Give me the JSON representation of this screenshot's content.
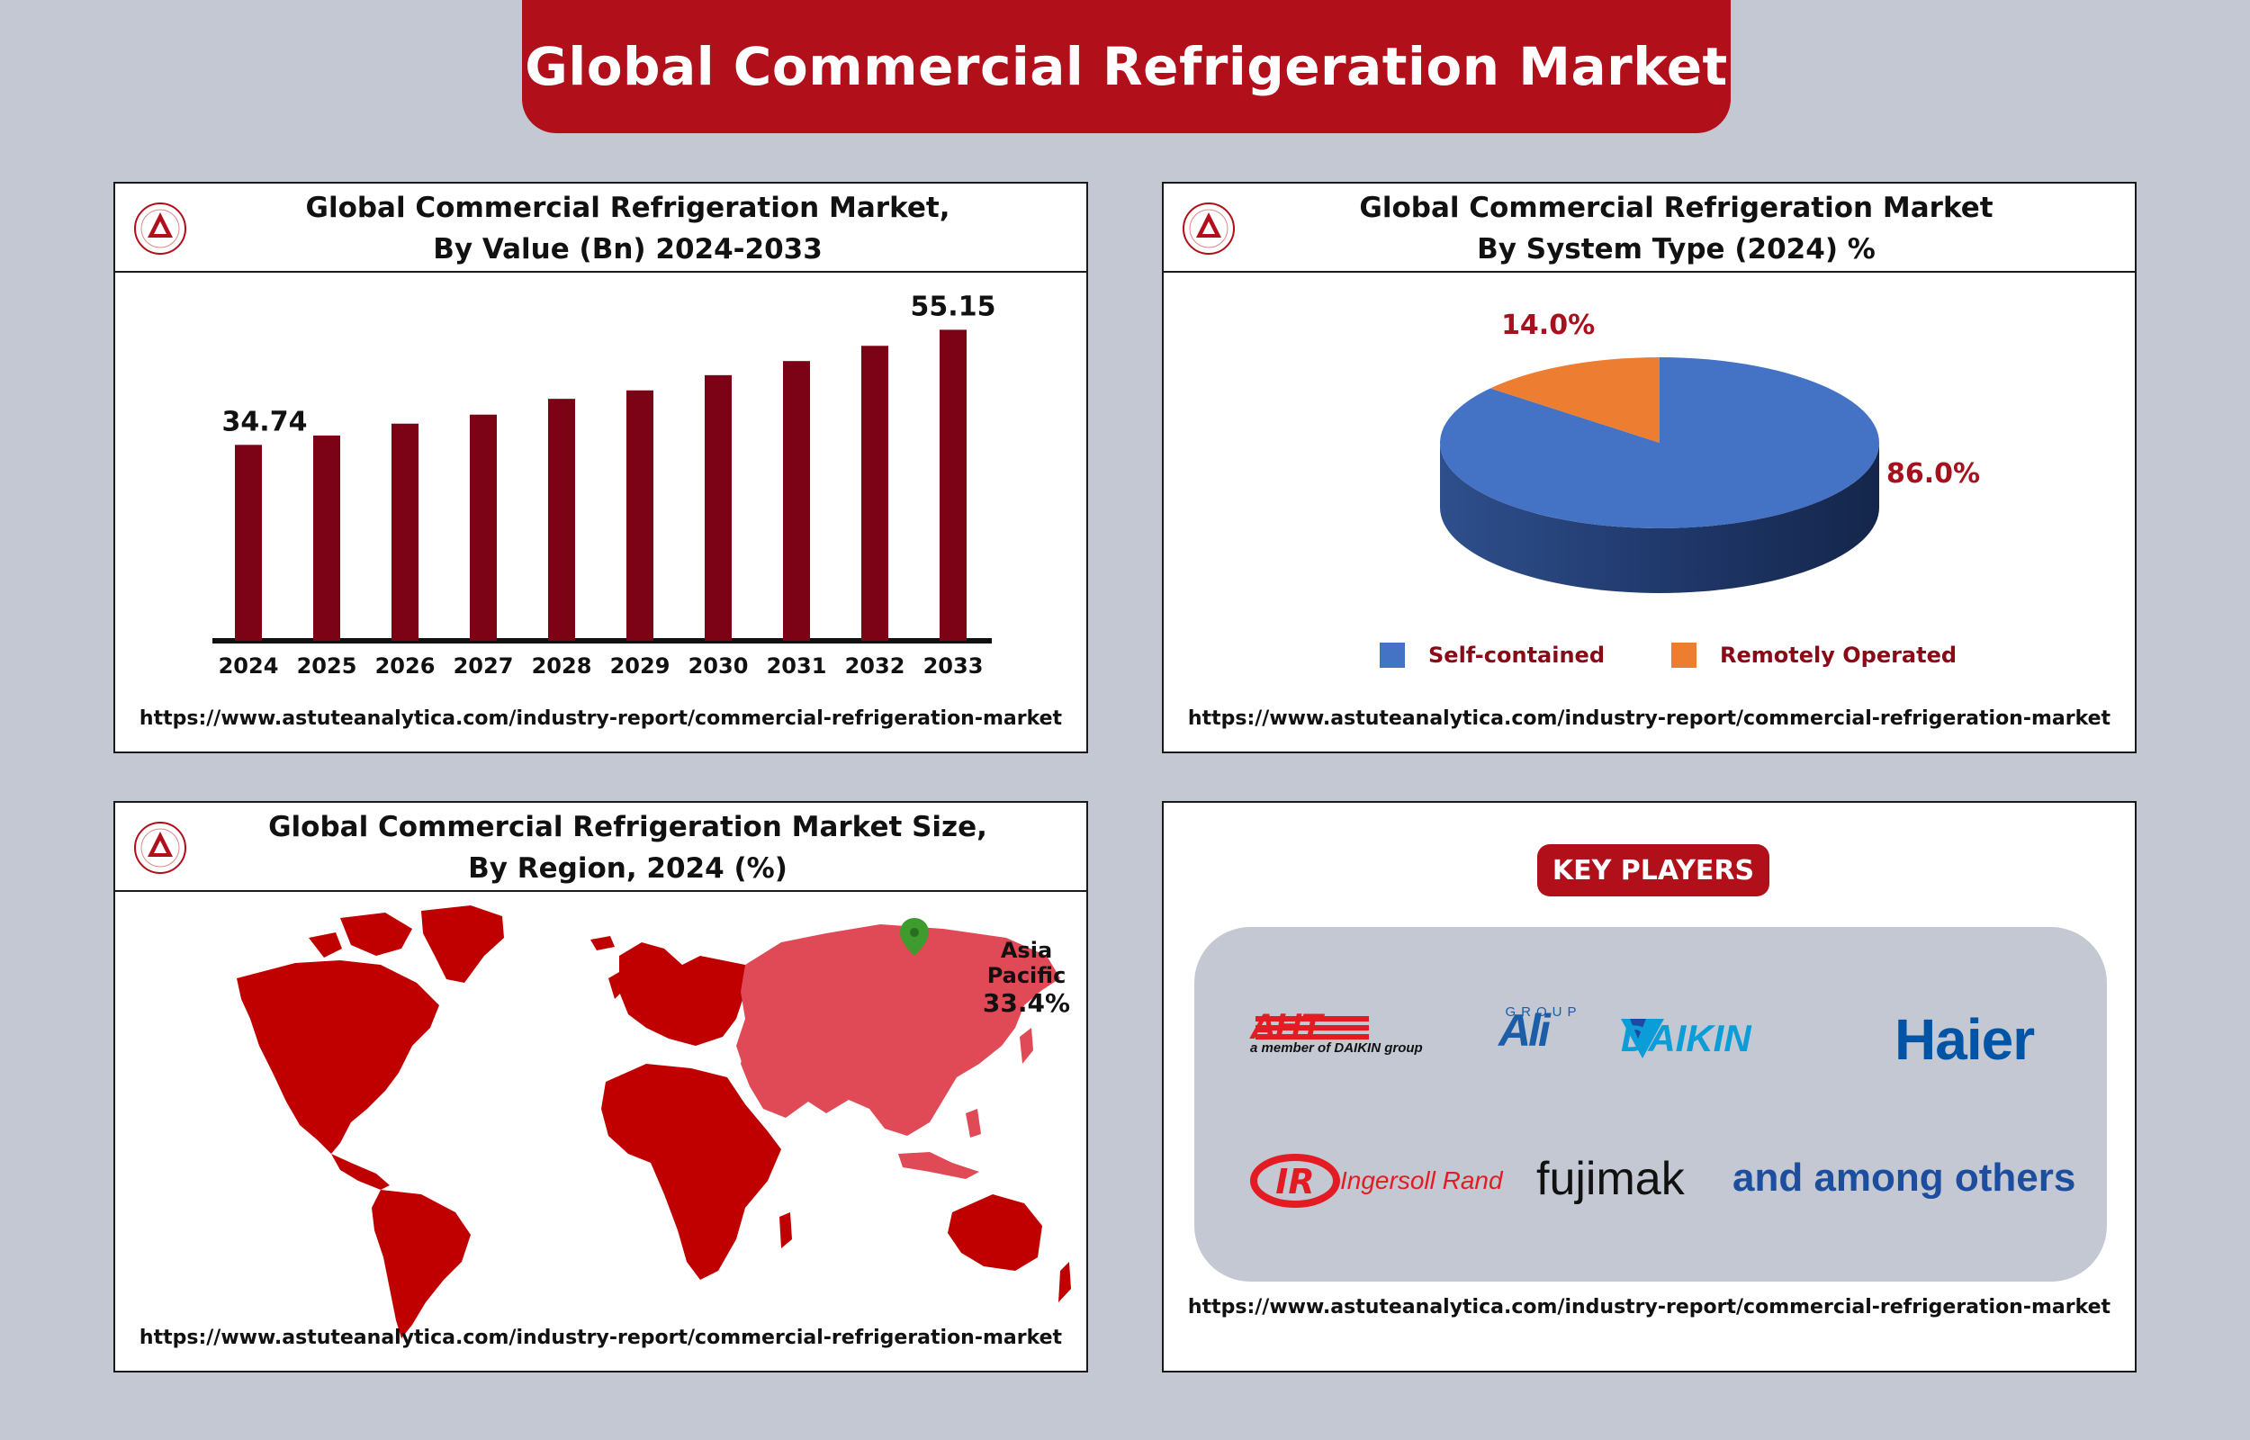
{
  "header": {
    "title": "Global Commercial Refrigeration Market"
  },
  "url": "https://www.astuteanalytica.com/industry-report/commercial-refrigeration-market",
  "panels": {
    "value": {
      "title_line1": "Global Commercial Refrigeration Market,",
      "title_line2": "By Value (Bn) 2024-2033"
    },
    "system": {
      "title_line1": "Global Commercial Refrigeration Market",
      "title_line2": "By System Type (2024) %"
    },
    "region": {
      "title_line1": "Global Commercial Refrigeration Market Size,",
      "title_line2": "By Region, 2024 (%)",
      "callout_name": "Asia Pacific",
      "callout_value": "33.4%"
    },
    "players": {
      "title": "KEY PLAYERS",
      "brands": [
        "AHT",
        "a member of DAIKIN group",
        "Ali",
        "GROUP",
        "DAIKIN",
        "Haier",
        "Ingersoll Rand",
        "fujimak",
        "and among others"
      ]
    }
  },
  "colors": {
    "brand_red": "#b10f1a",
    "bar": "#7c0316",
    "pie_blue": "#4472c4",
    "pie_orange": "#ed7d31",
    "map_red": "#c00000",
    "map_highlight": "#e04a57",
    "page_bg": "#c3c8d2"
  },
  "chart_data": [
    {
      "type": "bar",
      "title": "Global Commercial Refrigeration Market, By Value (Bn) 2024-2033",
      "categories": [
        "2024",
        "2025",
        "2026",
        "2027",
        "2028",
        "2029",
        "2030",
        "2031",
        "2032",
        "2033"
      ],
      "values": [
        34.74,
        36.4,
        38.5,
        40.1,
        42.9,
        44.4,
        47.1,
        49.6,
        52.3,
        55.15
      ],
      "data_labels": [
        "34.74",
        "",
        "",
        "",
        "",
        "",
        "",
        "",
        "",
        "55.15"
      ],
      "ylim": [
        0,
        60
      ],
      "grid": false
    },
    {
      "type": "pie",
      "title": "Global Commercial Refrigeration Market By System Type (2024) %",
      "slices": [
        {
          "name": "Self-contained",
          "value": 86.0,
          "label": "86.0%"
        },
        {
          "name": "Remotely Operated",
          "value": 14.0,
          "label": "14.0%"
        }
      ],
      "legend_placement": "bottom"
    }
  ]
}
